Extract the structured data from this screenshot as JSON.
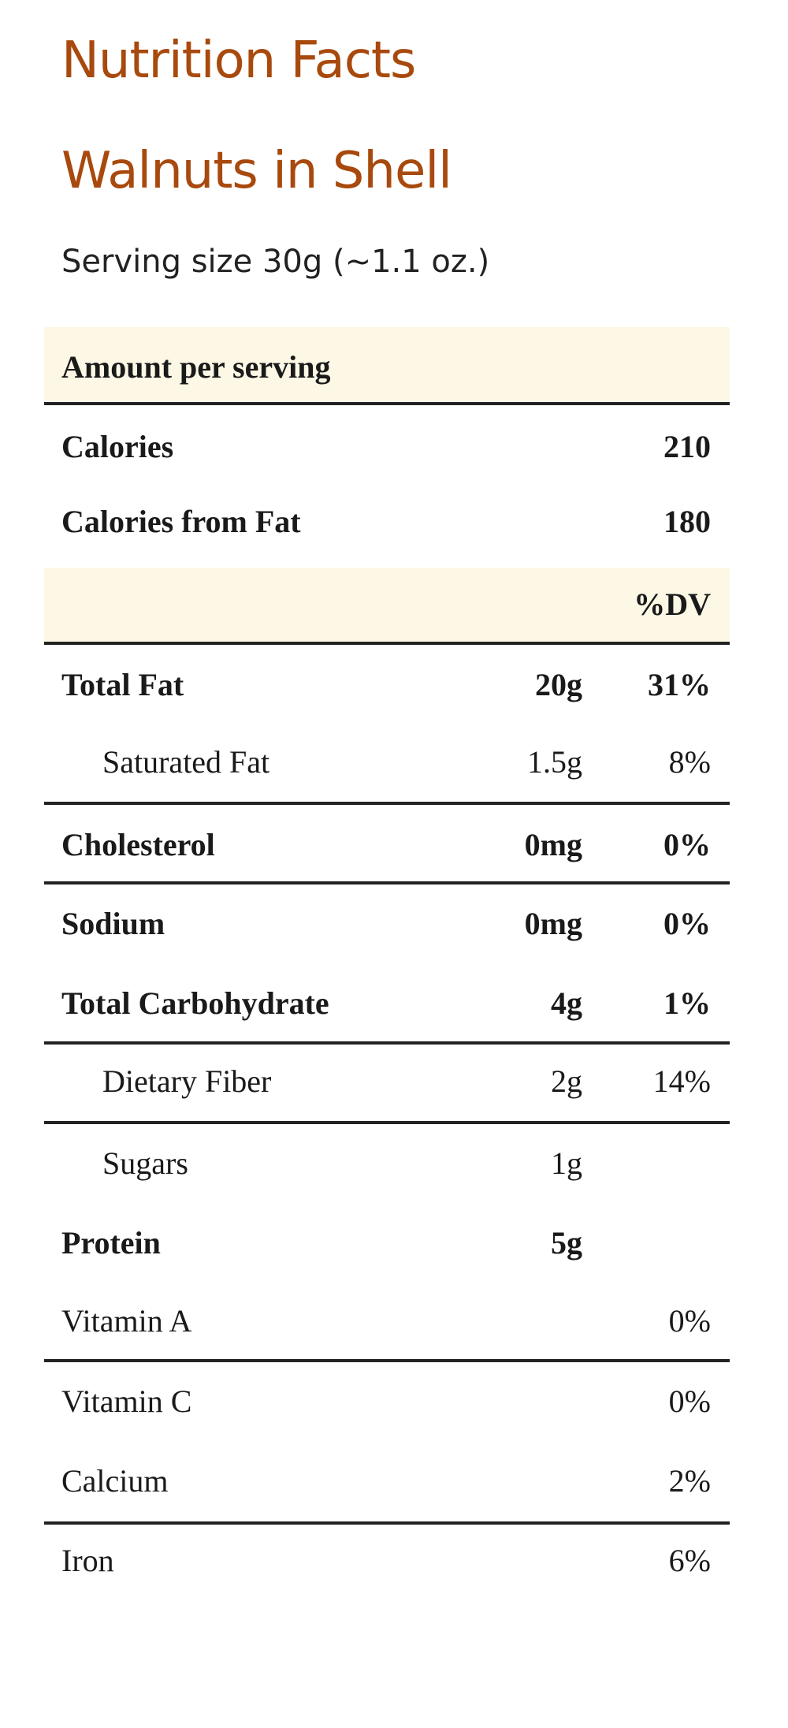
{
  "header": {
    "title": "Nutrition Facts",
    "subtitle": "Walnuts in Shell",
    "serving_size": "Serving size 30g (~1.1 oz.)"
  },
  "table": {
    "amount_heading": "Amount per serving",
    "calories": {
      "label": "Calories",
      "value": "210"
    },
    "calories_from_fat": {
      "label": "Calories from Fat",
      "value": "180"
    },
    "dv_heading": "%DV",
    "rows": [
      {
        "name": "Total Fat",
        "amount": "20g",
        "dv": "31%"
      },
      {
        "name": "Saturated Fat",
        "amount": "1.5g",
        "dv": "8%"
      },
      {
        "name": "Cholesterol",
        "amount": "0mg",
        "dv": "0%"
      },
      {
        "name": "Sodium",
        "amount": "0mg",
        "dv": "0%"
      },
      {
        "name": "Total Carbohydrate",
        "amount": "4g",
        "dv": "1%"
      },
      {
        "name": "Dietary Fiber",
        "amount": "2g",
        "dv": "14%"
      },
      {
        "name": "Sugars",
        "amount": "1g"
      },
      {
        "name": "Protein",
        "amount": "5g"
      },
      {
        "name": "Vitamin A",
        "dv": "0%"
      },
      {
        "name": "Vitamin C",
        "dv": "0%"
      },
      {
        "name": "Calcium",
        "dv": "2%"
      },
      {
        "name": "Iron",
        "dv": "6%"
      }
    ]
  }
}
